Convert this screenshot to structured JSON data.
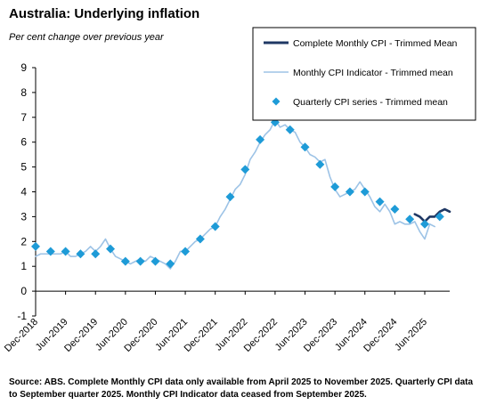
{
  "chart_data": {
    "type": "line",
    "title": "Australia: Underlying inflation",
    "subtitle": "Per cent change over previous year",
    "source": "Source: ABS.  Complete Monthly CPI data only available from April 2025 to November 2025. Quarterly CPI data to September quarter 2025. Monthly CPI Indicator data ceased from September 2025.",
    "ylim": [
      -1,
      9
    ],
    "yticks": [
      -1,
      0,
      1,
      2,
      3,
      4,
      5,
      6,
      7,
      8,
      9
    ],
    "x_start": "Dec-2018",
    "x_end": "Nov-2025",
    "xticks": [
      "Dec-2018",
      "Jun-2019",
      "Dec-2019",
      "Jun-2020",
      "Dec-2020",
      "Jun-2021",
      "Dec-2021",
      "Jun-2022",
      "Dec-2022",
      "Jun-2023",
      "Dec-2023",
      "Jun-2024",
      "Dec-2024",
      "Jun-2025"
    ],
    "legend_position": "top-right",
    "series": [
      {
        "name": "Complete Monthly CPI - Trimmed Mean",
        "kind": "line",
        "color": "#1f3864",
        "points": [
          [
            "Apr-2025",
            3.1
          ],
          [
            "May-2025",
            3.0
          ],
          [
            "Jun-2025",
            2.8
          ],
          [
            "Jul-2025",
            3.0
          ],
          [
            "Aug-2025",
            3.0
          ],
          [
            "Sep-2025",
            3.2
          ],
          [
            "Oct-2025",
            3.3
          ],
          [
            "Nov-2025",
            3.2
          ]
        ]
      },
      {
        "name": "Monthly CPI Indicator - Trimmed mean",
        "kind": "line",
        "color": "#9dc3e6",
        "points": [
          [
            "Dec-2018",
            1.4
          ],
          [
            "Jan-2019",
            1.5
          ],
          [
            "Feb-2019",
            1.5
          ],
          [
            "Mar-2019",
            1.5
          ],
          [
            "Apr-2019",
            1.5
          ],
          [
            "May-2019",
            1.5
          ],
          [
            "Jun-2019",
            1.6
          ],
          [
            "Jul-2019",
            1.4
          ],
          [
            "Aug-2019",
            1.4
          ],
          [
            "Sep-2019",
            1.5
          ],
          [
            "Oct-2019",
            1.6
          ],
          [
            "Nov-2019",
            1.8
          ],
          [
            "Dec-2019",
            1.6
          ],
          [
            "Jan-2020",
            1.8
          ],
          [
            "Feb-2020",
            2.1
          ],
          [
            "Mar-2020",
            1.7
          ],
          [
            "Apr-2020",
            1.4
          ],
          [
            "May-2020",
            1.3
          ],
          [
            "Jun-2020",
            1.2
          ],
          [
            "Jul-2020",
            1.1
          ],
          [
            "Aug-2020",
            1.2
          ],
          [
            "Sep-2020",
            1.3
          ],
          [
            "Oct-2020",
            1.2
          ],
          [
            "Nov-2020",
            1.4
          ],
          [
            "Dec-2020",
            1.3
          ],
          [
            "Jan-2021",
            1.2
          ],
          [
            "Feb-2021",
            1.1
          ],
          [
            "Mar-2021",
            0.9
          ],
          [
            "Apr-2021",
            1.2
          ],
          [
            "May-2021",
            1.6
          ],
          [
            "Jun-2021",
            1.6
          ],
          [
            "Jul-2021",
            1.8
          ],
          [
            "Aug-2021",
            2.0
          ],
          [
            "Sep-2021",
            2.1
          ],
          [
            "Oct-2021",
            2.3
          ],
          [
            "Nov-2021",
            2.5
          ],
          [
            "Dec-2021",
            2.6
          ],
          [
            "Jan-2022",
            3.0
          ],
          [
            "Feb-2022",
            3.3
          ],
          [
            "Mar-2022",
            3.7
          ],
          [
            "Apr-2022",
            4.1
          ],
          [
            "May-2022",
            4.3
          ],
          [
            "Jun-2022",
            4.7
          ],
          [
            "Jul-2022",
            5.3
          ],
          [
            "Aug-2022",
            5.6
          ],
          [
            "Sep-2022",
            6.0
          ],
          [
            "Oct-2022",
            6.3
          ],
          [
            "Nov-2022",
            6.5
          ],
          [
            "Dec-2022",
            6.9
          ],
          [
            "Jan-2023",
            6.6
          ],
          [
            "Feb-2023",
            6.7
          ],
          [
            "Mar-2023",
            6.5
          ],
          [
            "Apr-2023",
            6.4
          ],
          [
            "May-2023",
            6.0
          ],
          [
            "Jun-2023",
            5.8
          ],
          [
            "Jul-2023",
            5.5
          ],
          [
            "Aug-2023",
            5.4
          ],
          [
            "Sep-2023",
            5.2
          ],
          [
            "Oct-2023",
            5.3
          ],
          [
            "Nov-2023",
            4.6
          ],
          [
            "Dec-2023",
            4.1
          ],
          [
            "Jan-2024",
            3.8
          ],
          [
            "Feb-2024",
            3.9
          ],
          [
            "Mar-2024",
            4.0
          ],
          [
            "Apr-2024",
            4.1
          ],
          [
            "May-2024",
            4.4
          ],
          [
            "Jun-2024",
            4.1
          ],
          [
            "Jul-2024",
            3.8
          ],
          [
            "Aug-2024",
            3.4
          ],
          [
            "Sep-2024",
            3.2
          ],
          [
            "Oct-2024",
            3.5
          ],
          [
            "Nov-2024",
            3.2
          ],
          [
            "Dec-2024",
            2.7
          ],
          [
            "Jan-2025",
            2.8
          ],
          [
            "Feb-2025",
            2.7
          ],
          [
            "Mar-2025",
            2.7
          ],
          [
            "Apr-2025",
            2.8
          ],
          [
            "May-2025",
            2.4
          ],
          [
            "Jun-2025",
            2.1
          ],
          [
            "Jul-2025",
            2.7
          ],
          [
            "Aug-2025",
            2.6
          ]
        ]
      },
      {
        "name": "Quarterly CPI series - Trimmed mean",
        "kind": "marker",
        "color": "#1e9bd7",
        "points": [
          [
            "Dec-2018",
            1.8
          ],
          [
            "Mar-2019",
            1.6
          ],
          [
            "Jun-2019",
            1.6
          ],
          [
            "Sep-2019",
            1.5
          ],
          [
            "Dec-2019",
            1.5
          ],
          [
            "Mar-2020",
            1.7
          ],
          [
            "Jun-2020",
            1.2
          ],
          [
            "Sep-2020",
            1.2
          ],
          [
            "Dec-2020",
            1.2
          ],
          [
            "Mar-2021",
            1.1
          ],
          [
            "Jun-2021",
            1.6
          ],
          [
            "Sep-2021",
            2.1
          ],
          [
            "Dec-2021",
            2.6
          ],
          [
            "Mar-2022",
            3.8
          ],
          [
            "Jun-2022",
            4.9
          ],
          [
            "Sep-2022",
            6.1
          ],
          [
            "Dec-2022",
            6.8
          ],
          [
            "Mar-2023",
            6.5
          ],
          [
            "Jun-2023",
            5.8
          ],
          [
            "Sep-2023",
            5.1
          ],
          [
            "Dec-2023",
            4.2
          ],
          [
            "Mar-2024",
            4.0
          ],
          [
            "Jun-2024",
            4.0
          ],
          [
            "Sep-2024",
            3.6
          ],
          [
            "Dec-2024",
            3.3
          ],
          [
            "Mar-2025",
            2.9
          ],
          [
            "Jun-2025",
            2.7
          ],
          [
            "Sep-2025",
            3.0
          ]
        ]
      }
    ]
  }
}
